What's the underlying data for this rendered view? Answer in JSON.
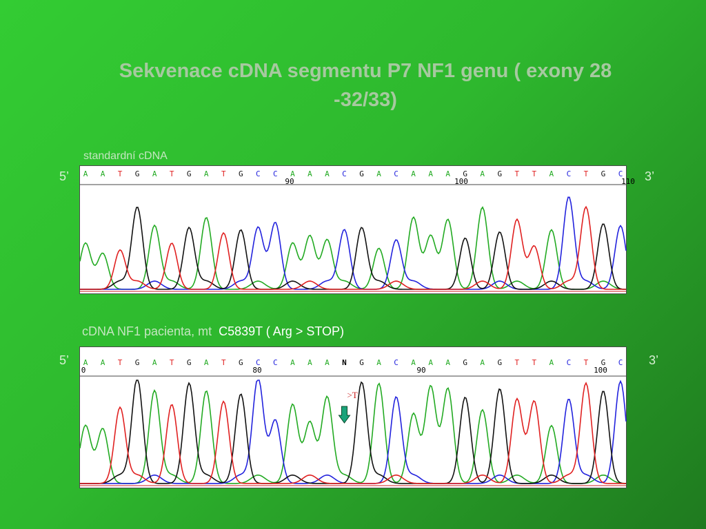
{
  "slide": {
    "title_line1": "Sekvenace cDNA segmentu P7  NF1 genu ( exony 28",
    "title_line2": "-32/33)",
    "label_standard": "standardní cDNA",
    "label_patient_prefix": "cDNA NF1 pacienta, mt",
    "label_patient_mutation": "C5839T ( Arg > STOP)",
    "end_5": "5’",
    "end_3": "3’"
  },
  "colors": {
    "A": "#22aa22",
    "C": "#2222dd",
    "G": "#111111",
    "T": "#e02020",
    "N": "#000000",
    "arrow": "#1aa37a"
  },
  "chromatogram_standard": {
    "bases": [
      "A",
      "A",
      "T",
      "G",
      "A",
      "T",
      "G",
      "A",
      "T",
      "G",
      "C",
      "C",
      "A",
      "A",
      "A",
      "C",
      "G",
      "A",
      "C",
      "A",
      "A",
      "A",
      "G",
      "A",
      "G",
      "T",
      "T",
      "A",
      "C",
      "T",
      "G",
      "C"
    ],
    "positions": [
      "90",
      "100",
      "110"
    ],
    "peaks": [
      0.45,
      0.35,
      0.38,
      0.8,
      0.62,
      0.45,
      0.6,
      0.7,
      0.55,
      0.58,
      0.6,
      0.65,
      0.45,
      0.52,
      0.48,
      0.58,
      0.6,
      0.4,
      0.48,
      0.7,
      0.52,
      0.68,
      0.5,
      0.8,
      0.56,
      0.68,
      0.42,
      0.58,
      0.9,
      0.8,
      0.64,
      0.62
    ]
  },
  "chromatogram_patient": {
    "bases": [
      "A",
      "A",
      "T",
      "G",
      "A",
      "T",
      "G",
      "A",
      "T",
      "G",
      "C",
      "C",
      "A",
      "A",
      "A",
      "N",
      "G",
      "A",
      "C",
      "A",
      "A",
      "A",
      "G",
      "A",
      "G",
      "T",
      "T",
      "A",
      "C",
      "T",
      "G",
      "C"
    ],
    "positions": [
      "0",
      "80",
      "90",
      "100"
    ],
    "peaks": [
      0.55,
      0.52,
      0.72,
      1.0,
      0.88,
      0.75,
      0.95,
      0.88,
      0.78,
      0.85,
      1.0,
      0.6,
      0.75,
      0.58,
      0.82,
      0.3,
      0.96,
      0.95,
      0.82,
      0.66,
      0.92,
      0.9,
      0.82,
      0.7,
      0.9,
      0.8,
      0.78,
      0.55,
      0.8,
      0.95,
      0.88,
      0.97
    ],
    "annotation": ">T"
  }
}
